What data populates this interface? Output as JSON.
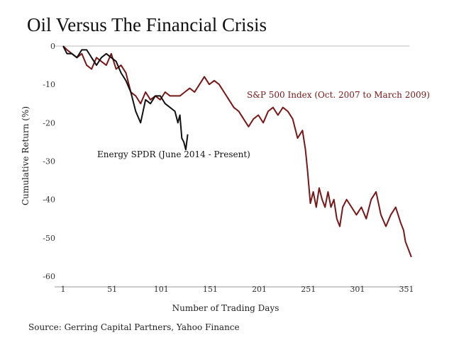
{
  "chart_data": {
    "type": "line",
    "title": "Oil Versus The Financial Crisis",
    "xlabel": "Number of Trading Days",
    "ylabel": "Cumulative Return (%)",
    "xlim": [
      1,
      356
    ],
    "ylim": [
      -62,
      1
    ],
    "x_ticks": [
      1,
      51,
      101,
      151,
      201,
      251,
      301,
      351
    ],
    "y_ticks": [
      0,
      -10,
      -20,
      -30,
      -40,
      -50,
      -60
    ],
    "grid": false,
    "source": "Source: Gerring Capital Partners, Yahoo Finance",
    "series": [
      {
        "name": "S&P 500 Index (Oct. 2007 to March 2009)",
        "color": "#7a1616",
        "x": [
          1,
          5,
          10,
          15,
          20,
          25,
          30,
          35,
          40,
          45,
          50,
          55,
          60,
          65,
          70,
          75,
          80,
          85,
          90,
          95,
          100,
          105,
          110,
          115,
          120,
          125,
          130,
          135,
          140,
          145,
          150,
          155,
          160,
          165,
          170,
          175,
          180,
          185,
          190,
          195,
          200,
          205,
          210,
          215,
          220,
          225,
          230,
          235,
          240,
          245,
          248,
          250,
          253,
          256,
          259,
          262,
          265,
          268,
          271,
          274,
          277,
          280,
          283,
          286,
          290,
          295,
          300,
          305,
          310,
          315,
          320,
          325,
          330,
          335,
          340,
          345,
          348,
          350,
          353,
          356
        ],
        "y": [
          0,
          -1,
          -2,
          -3,
          -2,
          -5,
          -6,
          -3,
          -4,
          -5,
          -2,
          -6,
          -5,
          -7,
          -12,
          -13,
          -15,
          -12,
          -14,
          -13,
          -14,
          -12,
          -13,
          -13,
          -13,
          -12,
          -11,
          -12,
          -10,
          -8,
          -10,
          -9,
          -10,
          -12,
          -14,
          -16,
          -17,
          -19,
          -21,
          -19,
          -18,
          -20,
          -17,
          -16,
          -18,
          -16,
          -17,
          -19,
          -24,
          -22,
          -27,
          -32,
          -41,
          -38,
          -42,
          -37,
          -40,
          -42,
          -38,
          -42,
          -40,
          -45,
          -47,
          -42,
          -40,
          -42,
          -44,
          -42,
          -45,
          -40,
          -38,
          -44,
          -47,
          -44,
          -42,
          -46,
          -48,
          -51,
          -53,
          -55
        ]
      },
      {
        "name": "Energy SPDR (June 2014 - Present)",
        "color": "#111111",
        "x": [
          1,
          5,
          10,
          15,
          20,
          25,
          30,
          35,
          40,
          45,
          50,
          55,
          60,
          65,
          70,
          75,
          80,
          85,
          90,
          95,
          100,
          105,
          110,
          115,
          118,
          120,
          122,
          124,
          126,
          128
        ],
        "y": [
          0,
          -2,
          -2,
          -3,
          -1,
          -1,
          -3,
          -5,
          -3,
          -2,
          -3,
          -4,
          -7,
          -9,
          -12,
          -17,
          -20,
          -14,
          -15,
          -13,
          -13,
          -15,
          -16,
          -17,
          -20,
          -18,
          -24,
          -25,
          -27,
          -23
        ]
      }
    ]
  }
}
